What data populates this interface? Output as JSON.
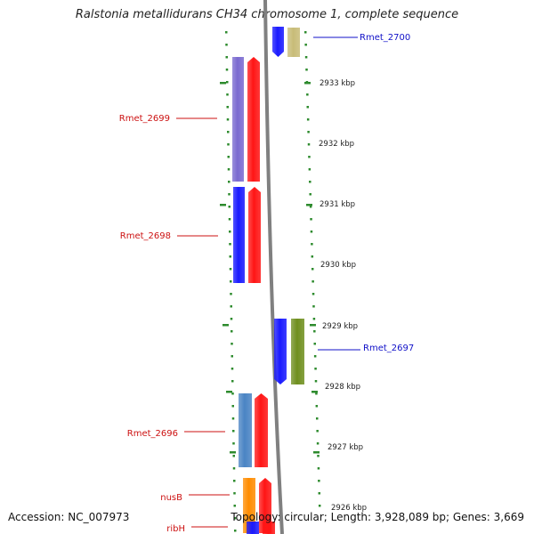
{
  "title": "Ralstonia metallidurans CH34 chromosome 1, complete sequence",
  "footer": {
    "accession": "Accession: NC_007973",
    "summary": "Topology: circular; Length: 3,928,089 bp; Genes: 3,669"
  },
  "ruler_labels": [
    {
      "text": "2933 kbp"
    },
    {
      "text": "2932 kbp"
    },
    {
      "text": "2931 kbp"
    },
    {
      "text": "2930 kbp"
    },
    {
      "text": "2929 kbp"
    },
    {
      "text": "2928 kbp"
    },
    {
      "text": "2927 kbp"
    },
    {
      "text": "2926 kbp"
    }
  ],
  "genes": [
    {
      "label": "Rmet_2700",
      "strand": "forward",
      "label_color": "#1010c8",
      "track_colors": [
        "#1a1aff",
        "#c8bc78"
      ]
    },
    {
      "label": "Rmet_2699",
      "strand": "reverse",
      "label_color": "#cc1111",
      "track_colors": [
        "#7a6ad0",
        "#ff1515"
      ]
    },
    {
      "label": "Rmet_2698",
      "strand": "reverse",
      "label_color": "#cc1111",
      "track_colors": [
        "#1a1aff",
        "#ff1515"
      ]
    },
    {
      "label": "Rmet_2697",
      "strand": "forward",
      "label_color": "#1010c8",
      "track_colors": [
        "#1a1aff",
        "#6f8f1e"
      ]
    },
    {
      "label": "Rmet_2696",
      "strand": "reverse",
      "label_color": "#cc1111",
      "track_colors": [
        "#4a84c4",
        "#ff1515"
      ]
    },
    {
      "label": "nusB",
      "strand": "reverse",
      "label_color": "#cc1111",
      "track_colors": [
        "#ff8c00",
        "#ff1515"
      ]
    },
    {
      "label": "ribH",
      "strand": "reverse",
      "label_color": "#cc1111",
      "track_colors": [
        "#1a1aff",
        "#ff1515"
      ]
    }
  ],
  "colors": {
    "backbone": "#808080",
    "ruler_ticks": "#2e8b2e",
    "forward_label": "#1010c8",
    "reverse_label": "#cc1111"
  }
}
